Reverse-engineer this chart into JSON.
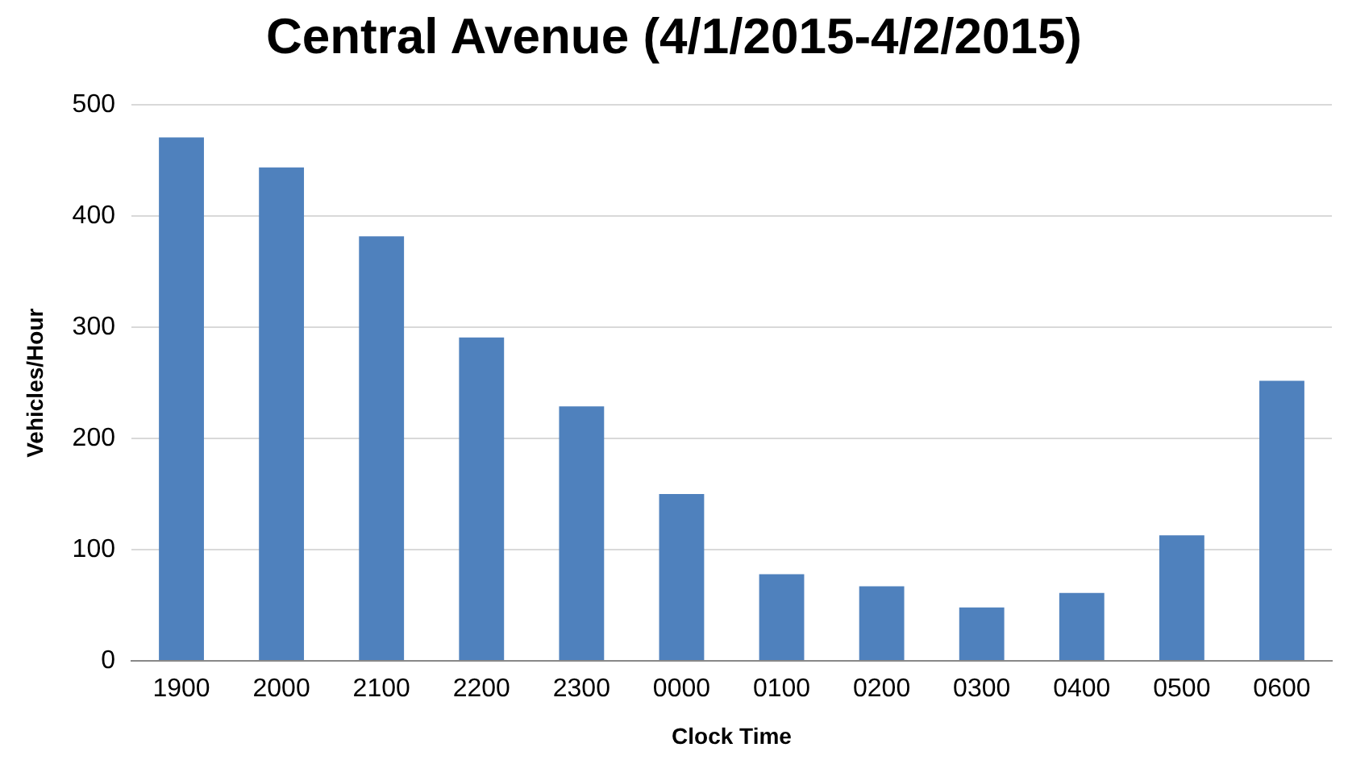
{
  "chart_data": {
    "type": "bar",
    "title": "Central Avenue (4/1/2015-4/2/2015)",
    "xlabel": "Clock Time",
    "ylabel": "Vehicles/Hour",
    "categories": [
      "1900",
      "2000",
      "2100",
      "2200",
      "2300",
      "0000",
      "0100",
      "0200",
      "0300",
      "0400",
      "0500",
      "0600"
    ],
    "values": [
      471,
      444,
      382,
      291,
      229,
      150,
      78,
      67,
      48,
      61,
      113,
      252
    ],
    "color": "#4f81bd",
    "ylim": [
      0,
      500
    ],
    "yticks": [
      0,
      100,
      200,
      300,
      400,
      500
    ],
    "grid": "y",
    "legend": false
  }
}
